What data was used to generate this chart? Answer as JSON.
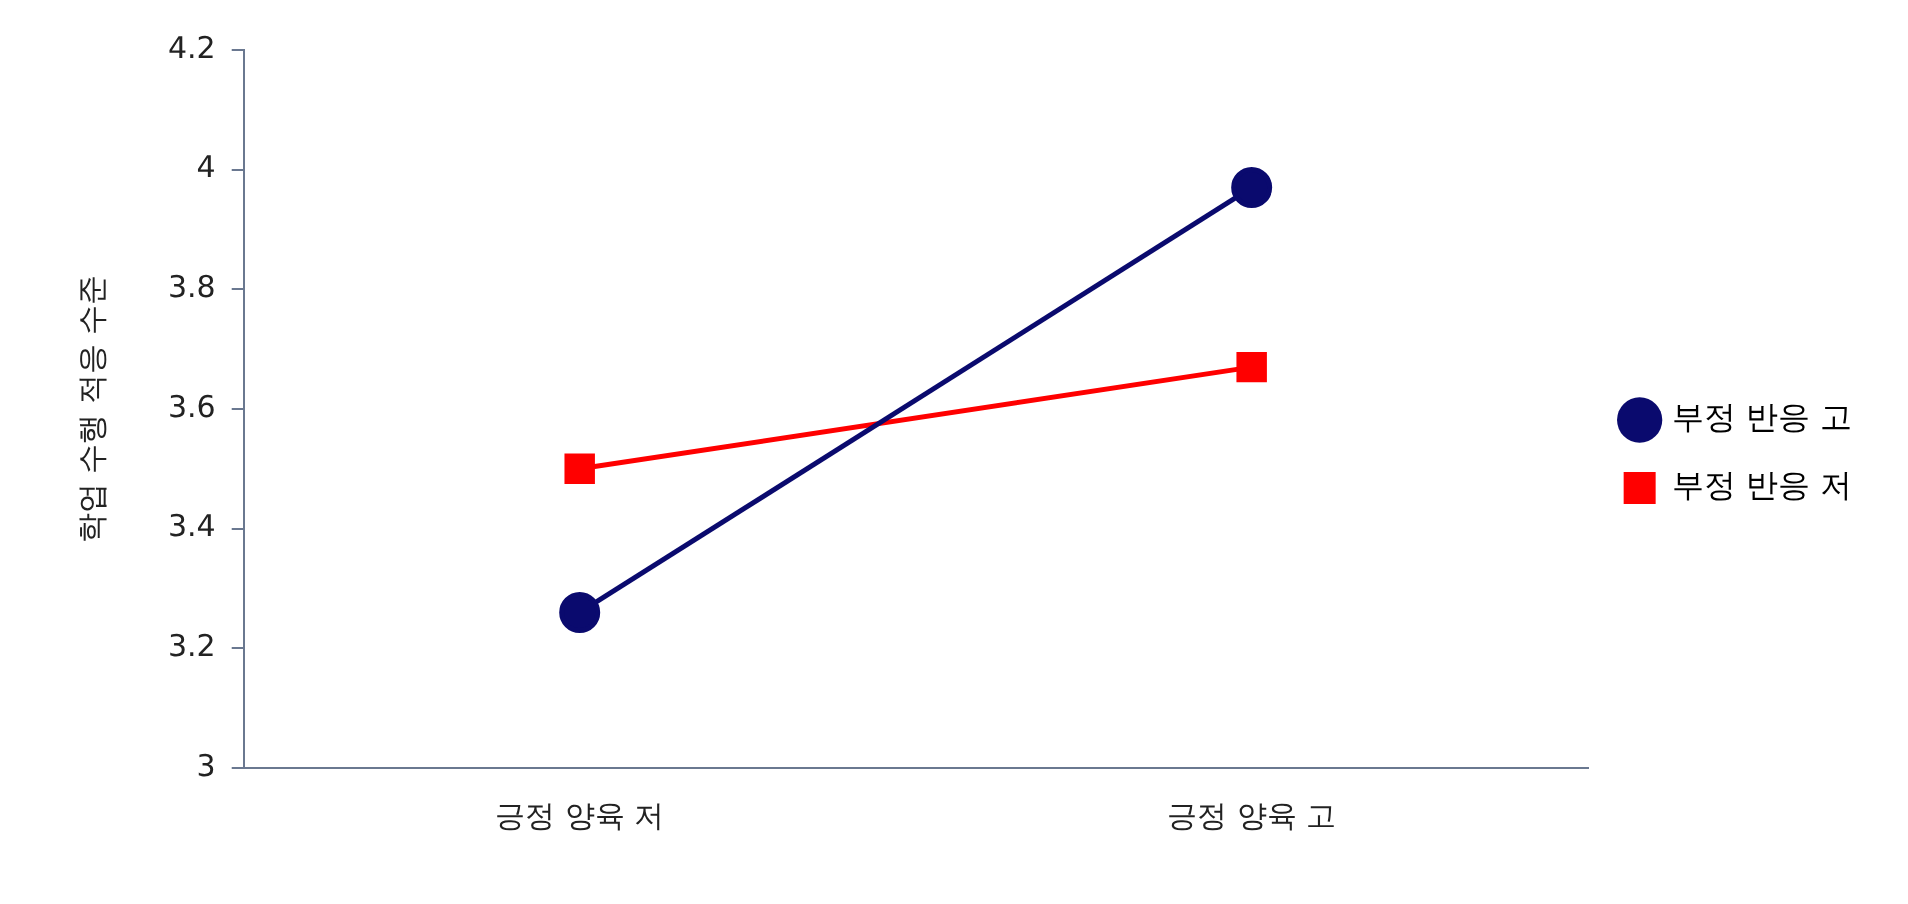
{
  "chart_data": {
    "type": "line",
    "ylabel": "학업 수행 적응 수준",
    "categories": [
      "긍정 양육 저",
      "긍정 양육 고"
    ],
    "series": [
      {
        "name": "부정 반응 고",
        "color": "#0a0a6e",
        "values": [
          3.26,
          3.97
        ],
        "marker": "circle"
      },
      {
        "name": "부정 반응 저",
        "color": "#ff0000",
        "values": [
          3.5,
          3.67
        ],
        "marker": "square"
      }
    ],
    "ylim": [
      3,
      4.2
    ],
    "yticks": [
      3,
      3.2,
      3.4,
      3.6,
      3.8,
      4,
      4.2
    ],
    "grid": false,
    "legend": "right",
    "line_style": "solid"
  }
}
